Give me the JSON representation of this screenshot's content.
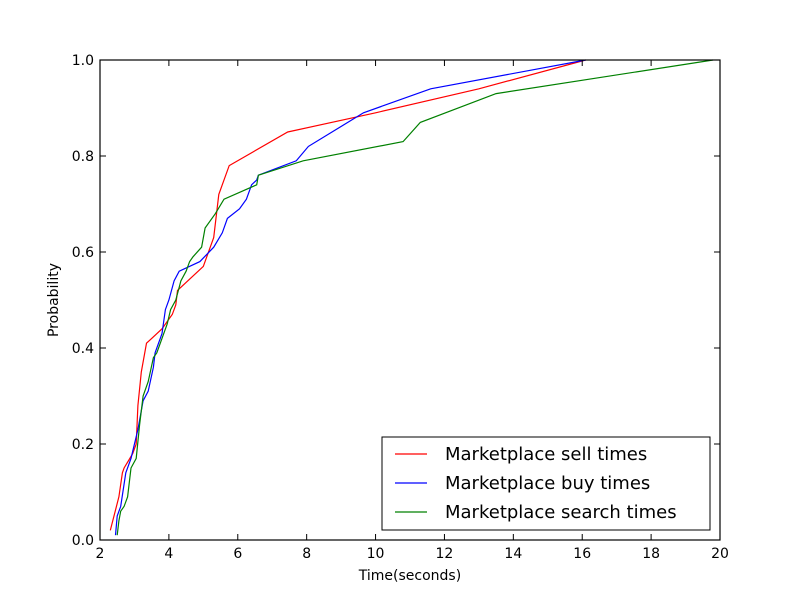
{
  "chart_data": {
    "type": "line",
    "title": "",
    "xlabel": "Time(seconds)",
    "ylabel": "Probability",
    "xlim": [
      2,
      20
    ],
    "ylim": [
      0.0,
      1.0
    ],
    "xticks": [
      "2",
      "4",
      "6",
      "8",
      "10",
      "12",
      "14",
      "16",
      "18",
      "20"
    ],
    "yticks": [
      "0.0",
      "0.2",
      "0.4",
      "0.6",
      "0.8",
      "1.0"
    ],
    "grid": false,
    "legend_position": "lower-right",
    "series": [
      {
        "name": "Marketplace sell times",
        "color": "#ff0000",
        "x": [
          2.3,
          2.55,
          2.65,
          2.7,
          2.95,
          3.05,
          3.1,
          3.2,
          3.35,
          3.5,
          3.8,
          4.1,
          4.2,
          4.25,
          5.0,
          5.3,
          5.45,
          5.75,
          7.45,
          10.0,
          13.0,
          16.1
        ],
        "y": [
          0.02,
          0.09,
          0.14,
          0.15,
          0.18,
          0.2,
          0.28,
          0.35,
          0.41,
          0.42,
          0.44,
          0.47,
          0.49,
          0.52,
          0.57,
          0.63,
          0.72,
          0.78,
          0.85,
          0.89,
          0.94,
          1.0
        ]
      },
      {
        "name": "Marketplace buy times",
        "color": "#0000ff",
        "x": [
          2.45,
          2.5,
          2.6,
          2.75,
          2.9,
          3.1,
          3.25,
          3.4,
          3.55,
          3.6,
          3.8,
          3.9,
          4.0,
          4.15,
          4.3,
          4.9,
          5.3,
          5.55,
          5.7,
          6.05,
          6.25,
          6.4,
          6.55,
          6.6,
          7.7,
          8.05,
          9.65,
          11.6,
          16.1
        ],
        "y": [
          0.01,
          0.05,
          0.07,
          0.14,
          0.17,
          0.23,
          0.29,
          0.31,
          0.36,
          0.39,
          0.43,
          0.48,
          0.5,
          0.54,
          0.56,
          0.58,
          0.61,
          0.64,
          0.67,
          0.69,
          0.71,
          0.74,
          0.75,
          0.76,
          0.79,
          0.82,
          0.89,
          0.94,
          1.0
        ]
      },
      {
        "name": "Marketplace search times",
        "color": "#008000",
        "x": [
          2.5,
          2.55,
          2.6,
          2.7,
          2.8,
          2.9,
          3.05,
          3.15,
          3.25,
          3.4,
          3.55,
          3.65,
          3.8,
          3.95,
          4.05,
          4.2,
          4.35,
          4.5,
          4.6,
          4.7,
          4.95,
          5.05,
          5.35,
          5.6,
          6.55,
          6.6,
          7.9,
          10.8,
          11.3,
          13.5,
          19.8
        ],
        "y": [
          0.01,
          0.04,
          0.06,
          0.07,
          0.09,
          0.15,
          0.17,
          0.24,
          0.3,
          0.33,
          0.38,
          0.39,
          0.42,
          0.45,
          0.48,
          0.5,
          0.54,
          0.56,
          0.58,
          0.59,
          0.61,
          0.65,
          0.68,
          0.71,
          0.74,
          0.76,
          0.79,
          0.83,
          0.87,
          0.93,
          1.0
        ]
      }
    ]
  }
}
